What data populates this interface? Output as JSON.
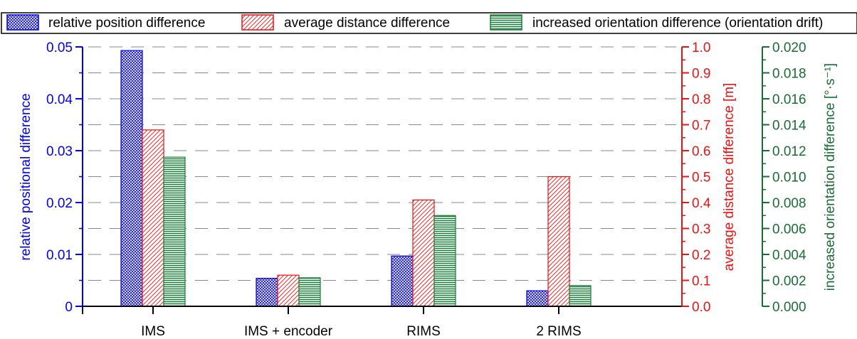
{
  "chart_data": {
    "type": "bar",
    "categories": [
      "IMS",
      "IMS + encoder",
      "RIMS",
      "2 RIMS"
    ],
    "series": [
      {
        "name": "relative position difference",
        "axis": "left",
        "values": [
          0.0493,
          0.0054,
          0.0097,
          0.003
        ],
        "color": "#0000ee",
        "pattern": "crosshatch"
      },
      {
        "name": "average distance difference",
        "axis": "right1",
        "values": [
          0.68,
          0.12,
          0.41,
          0.5
        ],
        "color": "#ee1111",
        "pattern": "diagonal"
      },
      {
        "name": "increased orientation difference (orientation drift)",
        "axis": "right2",
        "values": [
          0.0115,
          0.0022,
          0.007,
          0.0016
        ],
        "color": "#1a7a3a",
        "pattern": "horizontal"
      }
    ],
    "axes": {
      "left": {
        "label": "relative positional difference",
        "ylim": [
          0,
          0.05
        ],
        "ticks": [
          "0",
          "0.01",
          "0.02",
          "0.03",
          "0.04",
          "0.05"
        ],
        "color": "#0000ee"
      },
      "right1": {
        "label": "average distance difference [m]",
        "ylim": [
          0,
          1.0
        ],
        "ticks": [
          "0.0",
          "0.1",
          "0.2",
          "0.3",
          "0.4",
          "0.5",
          "0.6",
          "0.7",
          "0.8",
          "0.9",
          "1.0"
        ],
        "color": "#ee1111"
      },
      "right2": {
        "label": "increased orientation difference [°·s⁻¹]",
        "ylim": [
          0,
          0.02
        ],
        "ticks": [
          "0.000",
          "0.002",
          "0.004",
          "0.006",
          "0.008",
          "0.010",
          "0.012",
          "0.014",
          "0.016",
          "0.018",
          "0.020"
        ],
        "color": "#1a6b35"
      }
    },
    "grid": "dashed horizontal",
    "legend_position": "top"
  }
}
